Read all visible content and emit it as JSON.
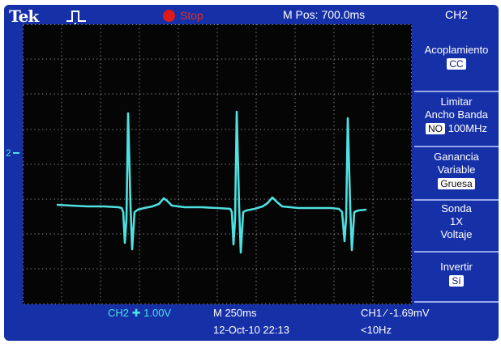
{
  "header": {
    "brand": "Tek",
    "status": "Stop",
    "m_pos": "M Pos: 700.0ms",
    "channel_title": "CH2"
  },
  "menu": {
    "coupling_label": "Acoplamiento",
    "coupling_value": "CC",
    "bw_label_1": "Limitar",
    "bw_label_2": "Ancho Banda",
    "bw_value": "NO",
    "bw_freq": "100MHz",
    "gain_label_1": "Ganancia",
    "gain_label_2": "Variable",
    "gain_value": "Gruesa",
    "probe_label": "Sonda",
    "probe_factor": "1X",
    "probe_type": "Voltaje",
    "invert_label": "Invertir",
    "invert_value": "Sí"
  },
  "footer": {
    "ch2_scale": "CH2 ✚ 1.00V",
    "timebase": "M 250ms",
    "trigger": "CH1 ⁄ -1.69mV",
    "datetime": "12-Oct-10 22:13",
    "freq": "<10Hz"
  },
  "colors": {
    "frame": "#1630a8",
    "trace": "#4fe0e0",
    "screen": "#050505",
    "stop": "#e01a1a"
  },
  "icons": {
    "trigger": "trigger-pulse-icon",
    "stop": "stop-dot-icon"
  }
}
